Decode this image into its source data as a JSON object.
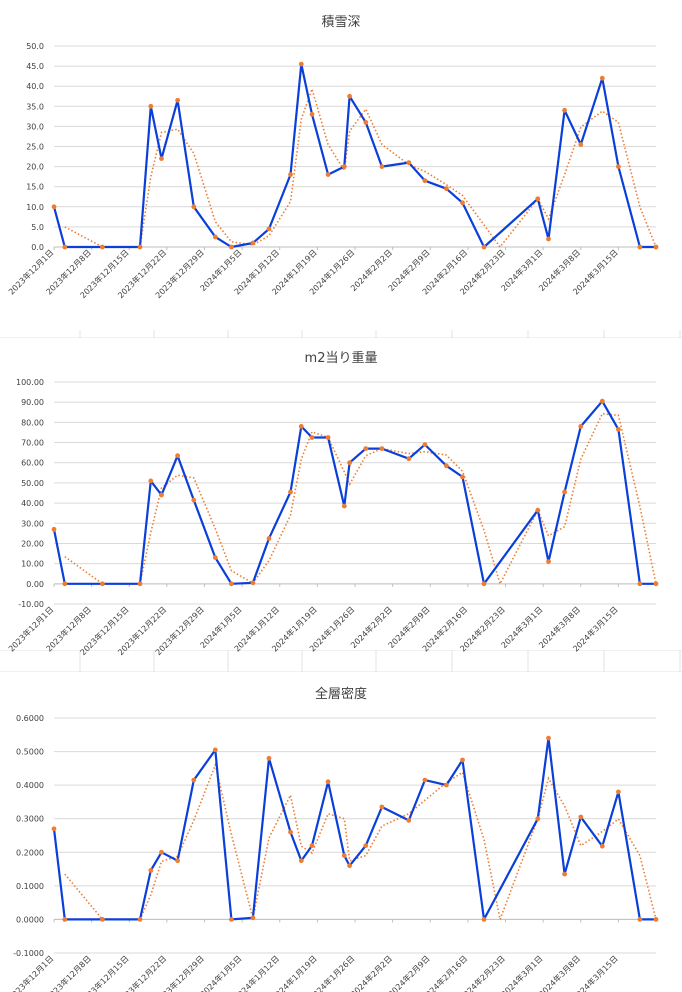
{
  "chart_data": [
    {
      "type": "line",
      "title": "積雪深",
      "ylim": [
        0,
        50
      ],
      "ystep": 5,
      "ydecimals": 1,
      "grid": true,
      "legend": "none",
      "x_tick_labels": [
        "2023年12月1日",
        "2023年12月8日",
        "2023年12月15日",
        "2023年12月22日",
        "2023年12月29日",
        "2024年1月5日",
        "2024年1月12日",
        "2024年1月19日",
        "2024年1月26日",
        "2024年2月2日",
        "2024年2月9日",
        "2024年2月16日",
        "2024年2月23日",
        "2024年3月1日",
        "2024年3月8日",
        "2024年3月15日"
      ],
      "series": [
        {
          "color": "#0a3fd9",
          "marker_color": "#ed7d31",
          "points": [
            [
              "2023-12-01",
              10.0
            ],
            [
              "2023-12-03",
              0.0
            ],
            [
              "2023-12-10",
              0.0
            ],
            [
              "2023-12-17",
              0.0
            ],
            [
              "2023-12-19",
              35.0
            ],
            [
              "2023-12-21",
              22.0
            ],
            [
              "2023-12-24",
              36.5
            ],
            [
              "2023-12-27",
              10.0
            ],
            [
              "2023-12-31",
              2.5
            ],
            [
              "2024-01-03",
              0.0
            ],
            [
              "2024-01-07",
              1.0
            ],
            [
              "2024-01-10",
              4.5
            ],
            [
              "2024-01-14",
              18.0
            ],
            [
              "2024-01-16",
              45.5
            ],
            [
              "2024-01-18",
              33.0
            ],
            [
              "2024-01-21",
              18.0
            ],
            [
              "2024-01-24",
              20.0
            ],
            [
              "2024-01-25",
              37.5
            ],
            [
              "2024-01-28",
              31.0
            ],
            [
              "2024-01-31",
              20.0
            ],
            [
              "2024-02-05",
              21.0
            ],
            [
              "2024-02-08",
              16.5
            ],
            [
              "2024-02-12",
              14.5
            ],
            [
              "2024-02-15",
              11.0
            ],
            [
              "2024-02-19",
              0.0
            ],
            [
              "2024-02-29",
              12.0
            ],
            [
              "2024-03-02",
              2.0
            ],
            [
              "2024-03-05",
              34.0
            ],
            [
              "2024-03-08",
              25.5
            ],
            [
              "2024-03-12",
              42.0
            ],
            [
              "2024-03-15",
              20.0
            ],
            [
              "2024-03-19",
              0.0
            ],
            [
              "2024-03-22",
              0.0
            ]
          ]
        }
      ],
      "trendline": {
        "color": "#ed7d31",
        "points": [
          [
            "2023-12-03",
            5.0
          ],
          [
            "2023-12-10",
            0.0
          ],
          [
            "2023-12-17",
            0.0
          ],
          [
            "2023-12-19",
            17.5
          ],
          [
            "2023-12-21",
            28.5
          ],
          [
            "2023-12-24",
            29.3
          ],
          [
            "2023-12-27",
            23.3
          ],
          [
            "2023-12-31",
            6.3
          ],
          [
            "2024-01-03",
            1.3
          ],
          [
            "2024-01-07",
            0.5
          ],
          [
            "2024-01-10",
            2.8
          ],
          [
            "2024-01-14",
            11.3
          ],
          [
            "2024-01-16",
            31.8
          ],
          [
            "2024-01-18",
            39.3
          ],
          [
            "2024-01-21",
            25.5
          ],
          [
            "2024-01-24",
            19.0
          ],
          [
            "2024-01-25",
            28.8
          ],
          [
            "2024-01-28",
            34.3
          ],
          [
            "2024-01-31",
            25.5
          ],
          [
            "2024-02-05",
            20.5
          ],
          [
            "2024-02-08",
            18.8
          ],
          [
            "2024-02-12",
            15.5
          ],
          [
            "2024-02-15",
            12.8
          ],
          [
            "2024-02-19",
            5.5
          ],
          [
            "2024-02-22",
            0.0
          ],
          [
            "2024-02-29",
            12.0
          ],
          [
            "2024-03-02",
            7.0
          ],
          [
            "2024-03-05",
            18.0
          ],
          [
            "2024-03-08",
            29.8
          ],
          [
            "2024-03-12",
            33.8
          ],
          [
            "2024-03-15",
            31.0
          ],
          [
            "2024-03-19",
            10.0
          ],
          [
            "2024-03-22",
            0.0
          ]
        ]
      }
    },
    {
      "type": "line",
      "title": "m2当り重量",
      "ylim": [
        -10,
        100
      ],
      "ystep": 10,
      "ydecimals": 2,
      "grid": true,
      "legend": "none",
      "x_tick_labels": [
        "2023年12月1日",
        "2023年12月8日",
        "2023年12月15日",
        "2023年12月22日",
        "2023年12月29日",
        "2024年1月5日",
        "2024年1月12日",
        "2024年1月19日",
        "2024年1月26日",
        "2024年2月2日",
        "2024年2月9日",
        "2024年2月16日",
        "2024年2月23日",
        "2024年3月1日",
        "2024年3月8日",
        "2024年3月15日"
      ],
      "series": [
        {
          "color": "#0a3fd9",
          "marker_color": "#ed7d31",
          "points": [
            [
              "2023-12-01",
              27.0
            ],
            [
              "2023-12-03",
              0.0
            ],
            [
              "2023-12-10",
              0.0
            ],
            [
              "2023-12-17",
              0.0
            ],
            [
              "2023-12-19",
              51.0
            ],
            [
              "2023-12-21",
              44.0
            ],
            [
              "2023-12-24",
              63.5
            ],
            [
              "2023-12-27",
              41.5
            ],
            [
              "2023-12-31",
              13.0
            ],
            [
              "2024-01-03",
              0.0
            ],
            [
              "2024-01-07",
              0.5
            ],
            [
              "2024-01-10",
              22.5
            ],
            [
              "2024-01-14",
              45.5
            ],
            [
              "2024-01-16",
              78.0
            ],
            [
              "2024-01-18",
              72.5
            ],
            [
              "2024-01-21",
              72.5
            ],
            [
              "2024-01-24",
              38.5
            ],
            [
              "2024-01-25",
              60.0
            ],
            [
              "2024-01-28",
              67.0
            ],
            [
              "2024-01-31",
              67.0
            ],
            [
              "2024-02-05",
              62.0
            ],
            [
              "2024-02-08",
              69.0
            ],
            [
              "2024-02-12",
              58.5
            ],
            [
              "2024-02-15",
              53.0
            ],
            [
              "2024-02-19",
              0.0
            ],
            [
              "2024-02-29",
              36.5
            ],
            [
              "2024-03-02",
              11.0
            ],
            [
              "2024-03-05",
              45.5
            ],
            [
              "2024-03-08",
              78.0
            ],
            [
              "2024-03-12",
              90.5
            ],
            [
              "2024-03-15",
              76.5
            ],
            [
              "2024-03-19",
              0.0
            ],
            [
              "2024-03-22",
              0.0
            ]
          ]
        }
      ],
      "trendline": {
        "color": "#ed7d31",
        "points": [
          [
            "2023-12-03",
            13.5
          ],
          [
            "2023-12-10",
            0.0
          ],
          [
            "2023-12-17",
            0.0
          ],
          [
            "2023-12-19",
            25.5
          ],
          [
            "2023-12-21",
            47.5
          ],
          [
            "2023-12-24",
            53.8
          ],
          [
            "2023-12-27",
            52.5
          ],
          [
            "2023-12-31",
            27.3
          ],
          [
            "2024-01-03",
            6.5
          ],
          [
            "2024-01-07",
            0.3
          ],
          [
            "2024-01-10",
            11.5
          ],
          [
            "2024-01-14",
            34.0
          ],
          [
            "2024-01-16",
            61.8
          ],
          [
            "2024-01-18",
            75.3
          ],
          [
            "2024-01-21",
            72.5
          ],
          [
            "2024-01-24",
            55.5
          ],
          [
            "2024-01-25",
            49.3
          ],
          [
            "2024-01-28",
            63.5
          ],
          [
            "2024-01-31",
            67.0
          ],
          [
            "2024-02-05",
            64.5
          ],
          [
            "2024-02-08",
            65.5
          ],
          [
            "2024-02-12",
            63.8
          ],
          [
            "2024-02-15",
            55.8
          ],
          [
            "2024-02-19",
            26.5
          ],
          [
            "2024-02-22",
            0.0
          ],
          [
            "2024-02-29",
            36.5
          ],
          [
            "2024-03-02",
            23.8
          ],
          [
            "2024-03-05",
            28.3
          ],
          [
            "2024-03-08",
            61.8
          ],
          [
            "2024-03-12",
            84.3
          ],
          [
            "2024-03-15",
            83.5
          ],
          [
            "2024-03-19",
            38.3
          ],
          [
            "2024-03-22",
            0.0
          ]
        ]
      }
    },
    {
      "type": "line",
      "title": "全層密度",
      "ylim": [
        -0.1,
        0.6
      ],
      "ystep": 0.1,
      "ydecimals": 4,
      "grid": true,
      "legend": "none",
      "x_tick_labels": [
        "2023年12月1日",
        "2023年12月8日",
        "2023年12月15日",
        "2023年12月22日",
        "2023年12月29日",
        "2024年1月5日",
        "2024年1月12日",
        "2024年1月19日",
        "2024年1月26日",
        "2024年2月2日",
        "2024年2月9日",
        "2024年2月16日",
        "2024年2月23日",
        "2024年3月1日",
        "2024年3月8日",
        "2024年3月15日"
      ],
      "series": [
        {
          "color": "#0a3fd9",
          "marker_color": "#ed7d31",
          "points": [
            [
              "2023-12-01",
              0.27
            ],
            [
              "2023-12-03",
              0.0
            ],
            [
              "2023-12-10",
              0.0
            ],
            [
              "2023-12-17",
              0.0
            ],
            [
              "2023-12-19",
              0.146
            ],
            [
              "2023-12-21",
              0.2
            ],
            [
              "2023-12-24",
              0.175
            ],
            [
              "2023-12-27",
              0.415
            ],
            [
              "2023-12-31",
              0.505
            ],
            [
              "2024-01-03",
              0.0
            ],
            [
              "2024-01-07",
              0.005
            ],
            [
              "2024-01-10",
              0.48
            ],
            [
              "2024-01-14",
              0.26
            ],
            [
              "2024-01-16",
              0.175
            ],
            [
              "2024-01-18",
              0.22
            ],
            [
              "2024-01-21",
              0.41
            ],
            [
              "2024-01-24",
              0.19
            ],
            [
              "2024-01-25",
              0.16
            ],
            [
              "2024-01-28",
              0.22
            ],
            [
              "2024-01-31",
              0.335
            ],
            [
              "2024-02-05",
              0.295
            ],
            [
              "2024-02-08",
              0.415
            ],
            [
              "2024-02-12",
              0.4
            ],
            [
              "2024-02-15",
              0.475
            ],
            [
              "2024-02-19",
              0.0
            ],
            [
              "2024-02-29",
              0.3
            ],
            [
              "2024-03-02",
              0.54
            ],
            [
              "2024-03-05",
              0.135
            ],
            [
              "2024-03-08",
              0.305
            ],
            [
              "2024-03-12",
              0.218
            ],
            [
              "2024-03-15",
              0.38
            ],
            [
              "2024-03-19",
              0.0
            ],
            [
              "2024-03-22",
              0.0
            ]
          ]
        }
      ],
      "trendline": {
        "color": "#ed7d31",
        "points": [
          [
            "2023-12-03",
            0.135
          ],
          [
            "2023-12-10",
            0.0
          ],
          [
            "2023-12-17",
            0.0
          ],
          [
            "2023-12-19",
            0.073
          ],
          [
            "2023-12-21",
            0.173
          ],
          [
            "2023-12-24",
            0.188
          ],
          [
            "2023-12-27",
            0.295
          ],
          [
            "2023-12-31",
            0.46
          ],
          [
            "2024-01-03",
            0.253
          ],
          [
            "2024-01-07",
            0.003
          ],
          [
            "2024-01-10",
            0.243
          ],
          [
            "2024-01-14",
            0.37
          ],
          [
            "2024-01-16",
            0.218
          ],
          [
            "2024-01-18",
            0.198
          ],
          [
            "2024-01-21",
            0.315
          ],
          [
            "2024-01-24",
            0.3
          ],
          [
            "2024-01-25",
            0.175
          ],
          [
            "2024-01-28",
            0.19
          ],
          [
            "2024-01-31",
            0.278
          ],
          [
            "2024-02-05",
            0.315
          ],
          [
            "2024-02-08",
            0.355
          ],
          [
            "2024-02-12",
            0.408
          ],
          [
            "2024-02-15",
            0.438
          ],
          [
            "2024-02-19",
            0.238
          ],
          [
            "2024-02-22",
            0.0
          ],
          [
            "2024-02-29",
            0.3
          ],
          [
            "2024-03-02",
            0.42
          ],
          [
            "2024-03-05",
            0.338
          ],
          [
            "2024-03-08",
            0.22
          ],
          [
            "2024-03-12",
            0.262
          ],
          [
            "2024-03-15",
            0.299
          ],
          [
            "2024-03-19",
            0.19
          ],
          [
            "2024-03-22",
            0.0
          ]
        ]
      }
    }
  ]
}
